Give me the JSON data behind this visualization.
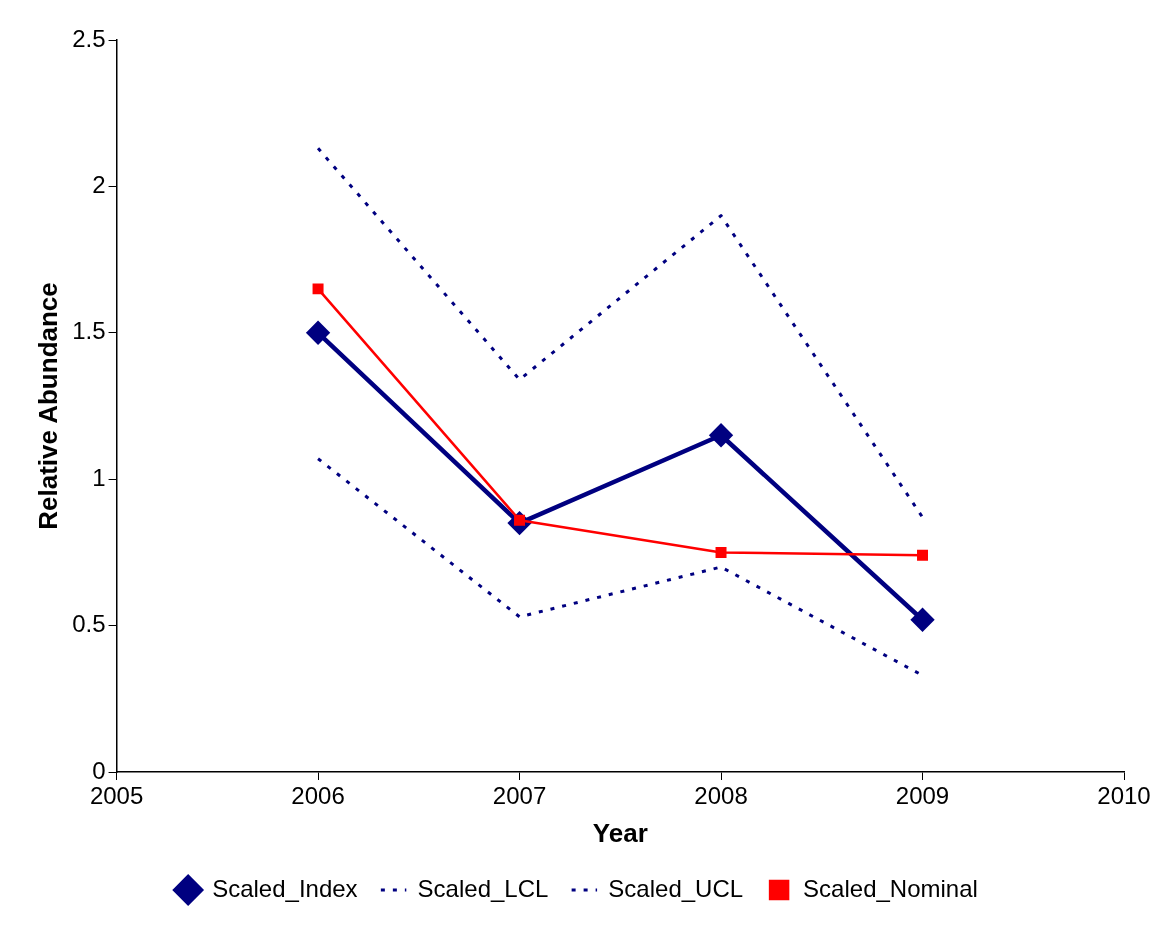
{
  "chart_data": {
    "type": "line",
    "xlabel": "Year",
    "ylabel": "Relative Abundance",
    "x": [
      2006,
      2007,
      2008,
      2009
    ],
    "xlim": [
      2005,
      2010
    ],
    "xticks": [
      2005,
      2006,
      2007,
      2008,
      2009,
      2010
    ],
    "ylim": [
      0,
      2.5
    ],
    "yticks": [
      0,
      0.5,
      1,
      1.5,
      2,
      2.5
    ],
    "grid": false,
    "legend": "bottom",
    "series": [
      {
        "name": "Scaled_Index",
        "color": "#000080",
        "values": [
          1.5,
          0.85,
          1.15,
          0.52
        ],
        "marker": "diamond",
        "line_style": "solid"
      },
      {
        "name": "Scaled_LCL",
        "color": "#000080",
        "values": [
          1.07,
          0.53,
          0.7,
          0.33
        ],
        "marker": "none",
        "line_style": "dotted"
      },
      {
        "name": "Scaled_UCL",
        "color": "#000080",
        "values": [
          2.13,
          1.34,
          1.9,
          0.87
        ],
        "marker": "none",
        "line_style": "dotted"
      },
      {
        "name": "Scaled_Nominal",
        "color": "#ff0000",
        "values": [
          1.65,
          0.86,
          0.75,
          0.74
        ],
        "marker": "square",
        "line_style": "solid"
      }
    ]
  }
}
